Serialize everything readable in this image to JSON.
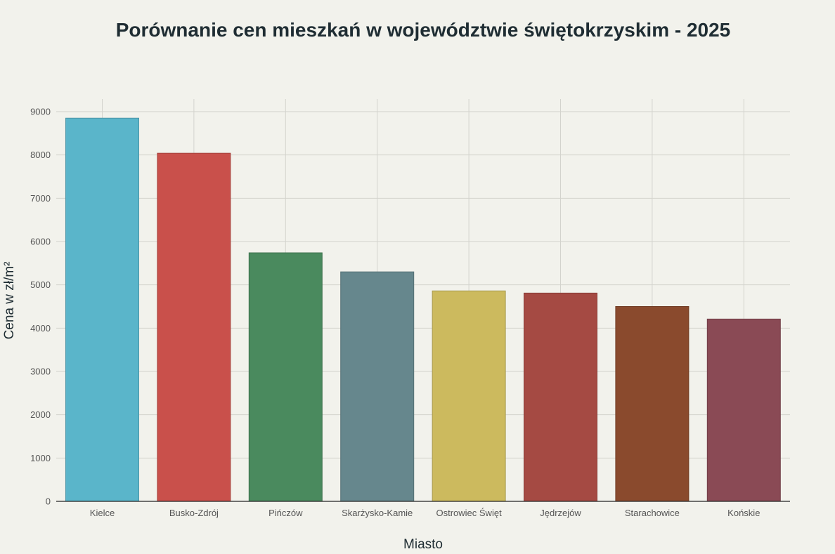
{
  "chart_data": {
    "type": "bar",
    "title": "Porównanie cen mieszkań w województwie świętokrzyskim - 2025",
    "xlabel": "Miasto",
    "ylabel": "Cena w zł/m²",
    "categories": [
      "Kielce",
      "Busko-Zdrój",
      "Pińczów",
      "Skarżysko-Kamie",
      "Ostrowiec Święt",
      "Jędrzejów",
      "Starachowice",
      "Końskie"
    ],
    "values": [
      8850,
      8040,
      5740,
      5300,
      4860,
      4810,
      4500,
      4210
    ],
    "colors": [
      "#5ab5ca",
      "#c9504b",
      "#4a8a5e",
      "#66878d",
      "#ccba5e",
      "#a54a43",
      "#8a4a2d",
      "#8a4a55"
    ],
    "ylim": [
      0,
      9000
    ],
    "yticks": [
      0,
      1000,
      2000,
      3000,
      4000,
      5000,
      6000,
      7000,
      8000,
      9000
    ],
    "grid": true,
    "legend": "none"
  }
}
